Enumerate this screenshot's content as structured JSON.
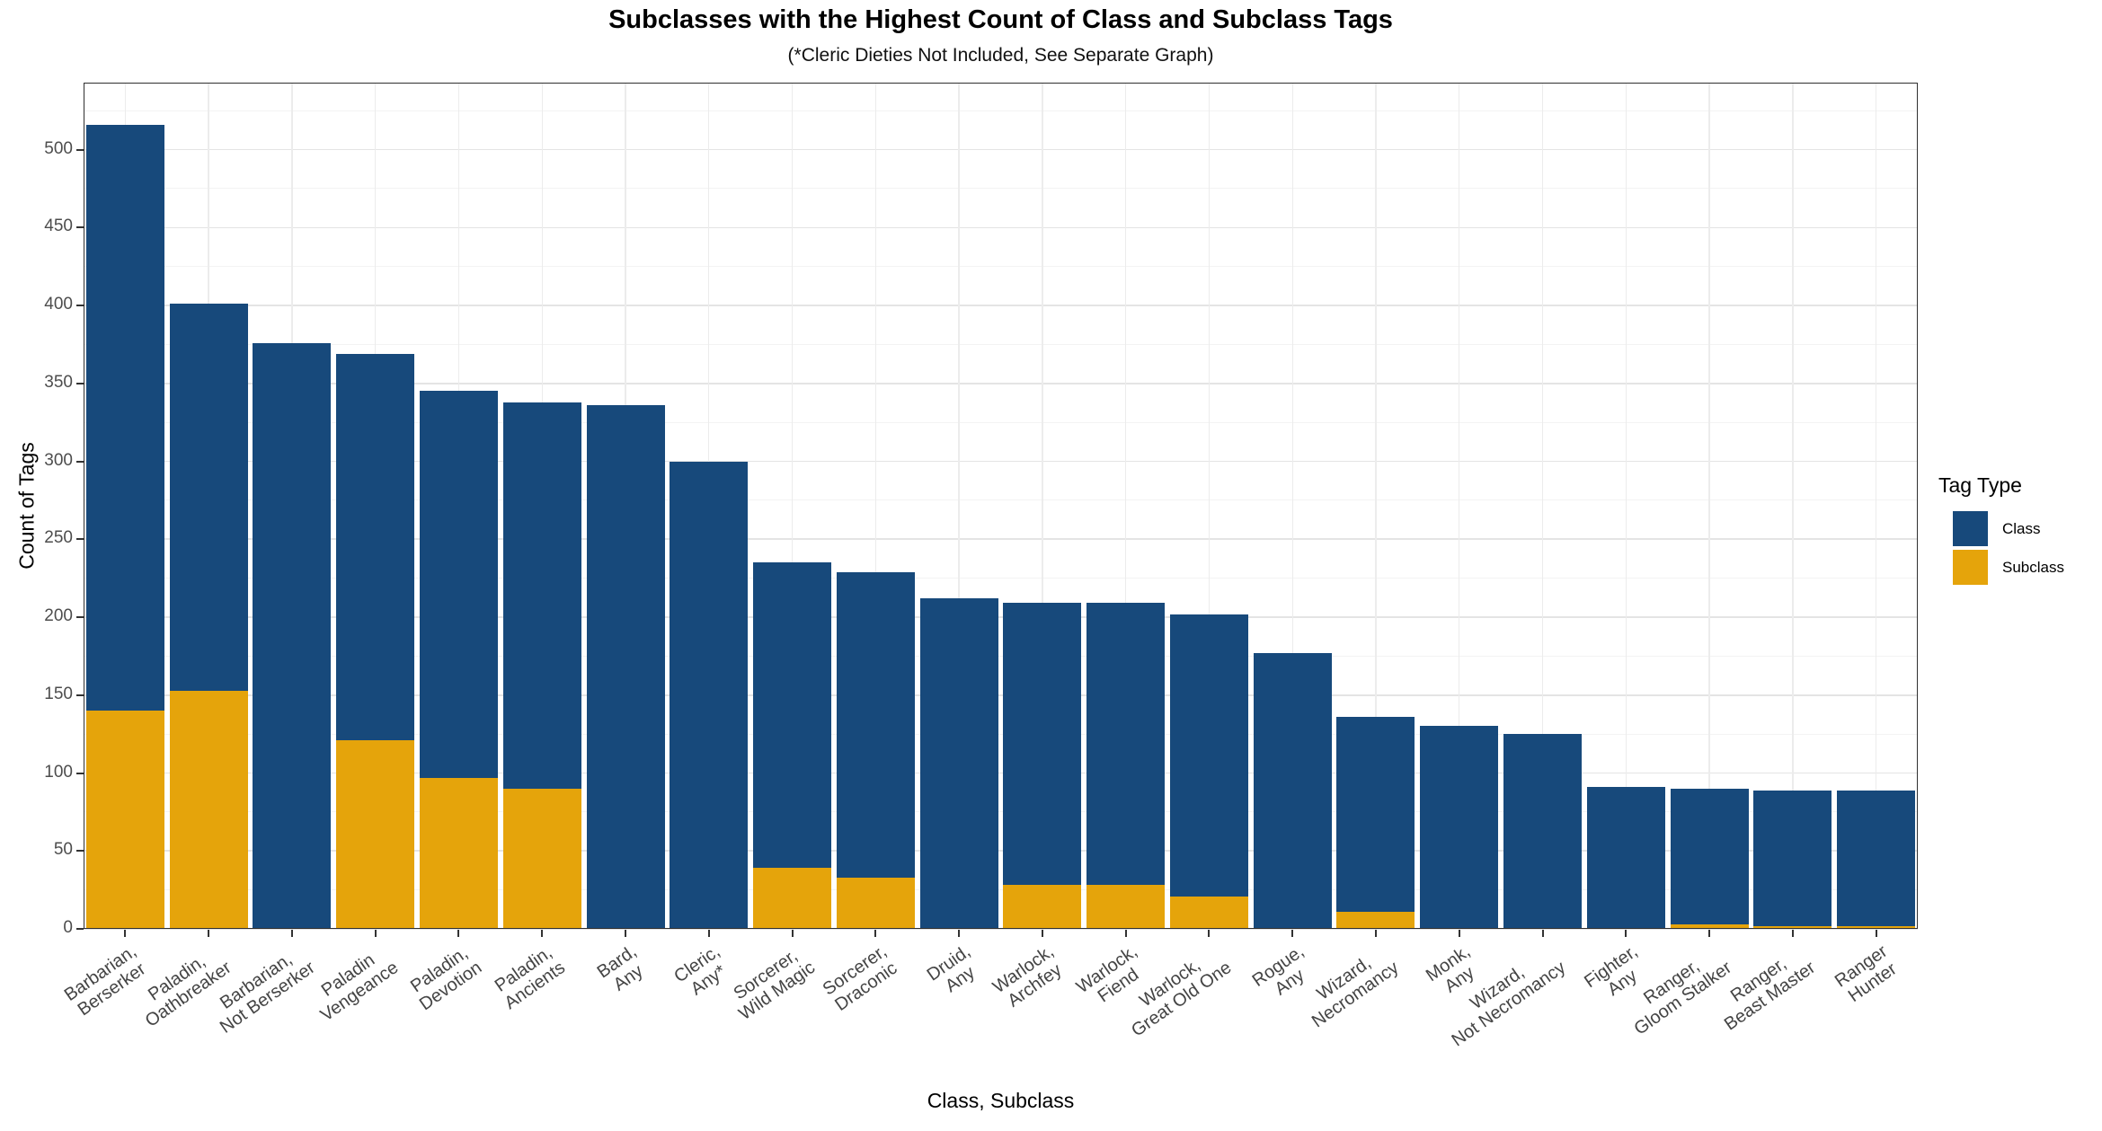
{
  "chart_data": {
    "type": "bar",
    "stacked": true,
    "title": "Subclasses with the Highest Count of Class and Subclass Tags",
    "subtitle": "(*Cleric Dieties Not Included, See Separate Graph)",
    "xlabel": "Class, Subclass",
    "ylabel": "Count of Tags",
    "ylim": [
      0,
      543
    ],
    "yticks": [
      0,
      50,
      100,
      150,
      200,
      250,
      300,
      350,
      400,
      450,
      500
    ],
    "grid": true,
    "legend": {
      "title": "Tag Type",
      "position": "right"
    },
    "categories": [
      "Barbarian,\nBerserker",
      "Paladin,\nOathbreaker",
      "Barbarian,\nNot Berserker",
      "Paladin\nVengeance",
      "Paladin,\nDevotion",
      "Paladin,\nAncients",
      "Bard,\nAny",
      "Cleric,\nAny*",
      "Sorcerer,\nWild Magic",
      "Sorcerer,\nDraconic",
      "Druid,\nAny",
      "Warlock,\nArchfey",
      "Warlock,\nFiend",
      "Warlock,\nGreat Old One",
      "Rogue,\nAny",
      "Wizard,\nNecromancy",
      "Monk,\nAny",
      "Wizard,\nNot Necromancy",
      "Fighter,\nAny",
      "Ranger,\nGloom Stalker",
      "Ranger,\nBeast Master",
      "Ranger\nHunter"
    ],
    "stack_order_bottom_to_top": [
      "Subclass",
      "Class"
    ],
    "series": [
      {
        "name": "Subclass",
        "color": "#E5A40B",
        "values": [
          140,
          153,
          0,
          121,
          97,
          90,
          0,
          0,
          39,
          33,
          0,
          28,
          28,
          21,
          0,
          11,
          0,
          0,
          0,
          3,
          2,
          2
        ]
      },
      {
        "name": "Class",
        "color": "#17497B",
        "values": [
          376,
          248,
          376,
          248,
          248,
          248,
          336,
          300,
          196,
          196,
          212,
          181,
          181,
          181,
          177,
          125,
          130,
          125,
          91,
          87,
          87,
          87
        ]
      }
    ],
    "totals": [
      516,
      401,
      376,
      369,
      345,
      338,
      336,
      300,
      235,
      229,
      212,
      209,
      209,
      202,
      177,
      136,
      130,
      125,
      91,
      90,
      89,
      89
    ]
  }
}
